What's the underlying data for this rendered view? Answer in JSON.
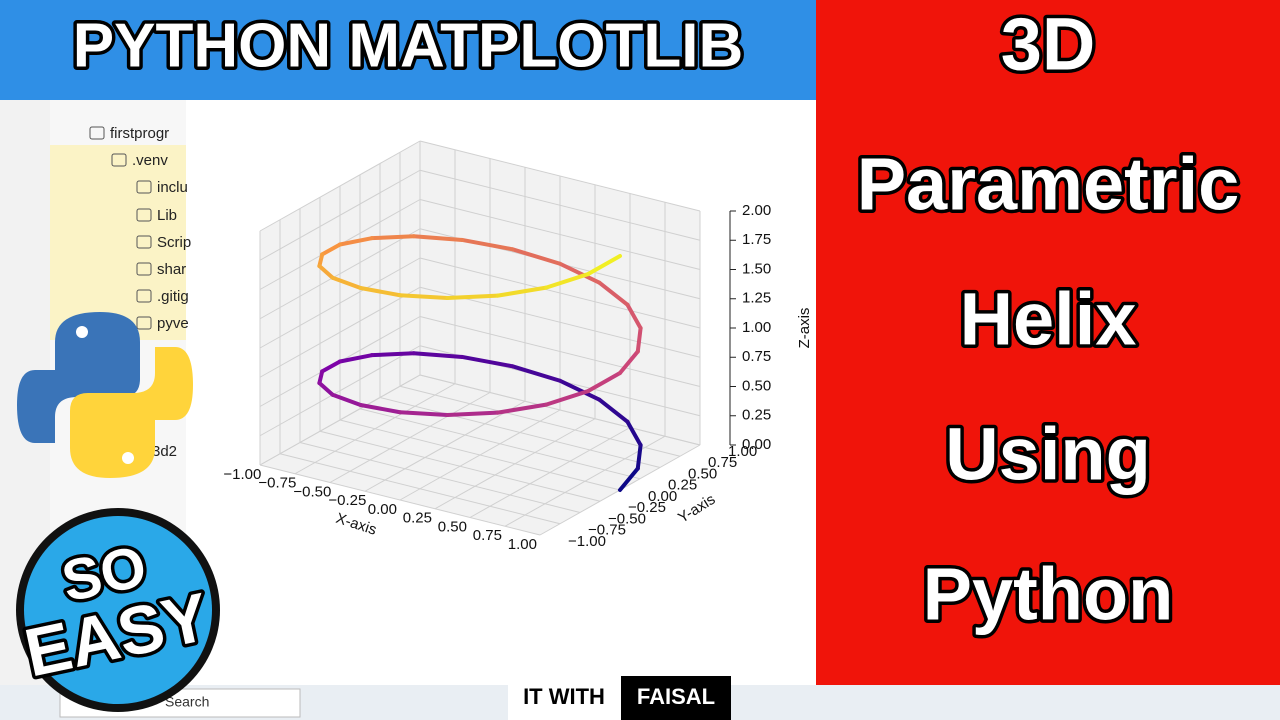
{
  "header": {
    "title": "PYTHON MATPLOTLIB"
  },
  "side": {
    "lines": [
      "3D",
      "Parametric",
      "Helix",
      "Using",
      "Python"
    ]
  },
  "ide": {
    "tree": [
      "firstprogr",
      ".venv",
      "inclu",
      "Lib",
      "Scrip",
      "shar",
      ".gitig",
      "pyve",
      "3d2"
    ]
  },
  "badge": {
    "lines": [
      "SO",
      "EASY"
    ]
  },
  "taskbar": {
    "search": "Search",
    "brand": [
      "IT WITH",
      "FAISAL"
    ]
  },
  "chart_data": {
    "type": "line3d",
    "xlabel": "X-axis",
    "ylabel": "Y-axis",
    "zlabel": "Z-axis",
    "colormap": "plasma",
    "grid": true,
    "xlim": [
      -1,
      1
    ],
    "ylim": [
      -1,
      1
    ],
    "zlim": [
      0,
      2
    ],
    "xticks": [
      {
        "value": -1,
        "label": "−1.00"
      },
      {
        "value": -0.75,
        "label": "−0.75"
      },
      {
        "value": -0.5,
        "label": "−0.50"
      },
      {
        "value": -0.25,
        "label": "−0.25"
      },
      {
        "value": 0,
        "label": "0.00"
      },
      {
        "value": 0.25,
        "label": "0.25"
      },
      {
        "value": 0.5,
        "label": "0.50"
      },
      {
        "value": 0.75,
        "label": "0.75"
      },
      {
        "value": 1,
        "label": "1.00"
      }
    ],
    "yticks": [
      {
        "value": -1,
        "label": "−1.00"
      },
      {
        "value": -0.75,
        "label": "−0.75"
      },
      {
        "value": -0.5,
        "label": "−0.50"
      },
      {
        "value": -0.25,
        "label": "−0.25"
      },
      {
        "value": 0,
        "label": "0.00"
      },
      {
        "value": 0.25,
        "label": "0.25"
      },
      {
        "value": 0.5,
        "label": "0.50"
      },
      {
        "value": 0.75,
        "label": "0.75"
      },
      {
        "value": 1,
        "label": "1.00"
      }
    ],
    "zticks": [
      {
        "value": 0,
        "label": "0.00"
      },
      {
        "value": 0.25,
        "label": "0.25"
      },
      {
        "value": 0.5,
        "label": "0.50"
      },
      {
        "value": 0.75,
        "label": "0.75"
      },
      {
        "value": 1,
        "label": "1.00"
      },
      {
        "value": 1.25,
        "label": "1.25"
      },
      {
        "value": 1.5,
        "label": "1.50"
      },
      {
        "value": 1.75,
        "label": "1.75"
      },
      {
        "value": 2,
        "label": "2.00"
      }
    ],
    "series": [
      {
        "name": "helix",
        "x": [
          1,
          0.95,
          0.81,
          0.59,
          0.31,
          0,
          -0.31,
          -0.59,
          -0.81,
          -0.95,
          -1,
          -0.95,
          -0.81,
          -0.59,
          -0.31,
          0,
          0.31,
          0.59,
          0.81,
          0.95,
          1,
          0.95,
          0.81,
          0.59,
          0.31,
          0,
          -0.31,
          -0.59,
          -0.81,
          -0.95,
          -1,
          -0.95,
          -0.81,
          -0.59,
          -0.31,
          0,
          0.31,
          0.59,
          0.81,
          0.95,
          1
        ],
        "y": [
          0,
          0.31,
          0.59,
          0.81,
          0.95,
          1,
          0.95,
          0.81,
          0.59,
          0.31,
          0,
          -0.31,
          -0.59,
          -0.81,
          -0.95,
          -1,
          -0.95,
          -0.81,
          -0.59,
          -0.31,
          0,
          0.31,
          0.59,
          0.81,
          0.95,
          1,
          0.95,
          0.81,
          0.59,
          0.31,
          0,
          -0.31,
          -0.59,
          -0.81,
          -0.95,
          -1,
          -0.95,
          -0.81,
          -0.59,
          -0.31,
          0
        ],
        "z": [
          0,
          0.05,
          0.1,
          0.15,
          0.2,
          0.25,
          0.3,
          0.35,
          0.4,
          0.45,
          0.5,
          0.55,
          0.6,
          0.65,
          0.7,
          0.75,
          0.8,
          0.85,
          0.9,
          0.95,
          1,
          1.05,
          1.1,
          1.15,
          1.2,
          1.25,
          1.3,
          1.35,
          1.4,
          1.45,
          1.5,
          1.55,
          1.6,
          1.65,
          1.7,
          1.75,
          1.8,
          1.85,
          1.9,
          1.95,
          2
        ]
      }
    ]
  }
}
